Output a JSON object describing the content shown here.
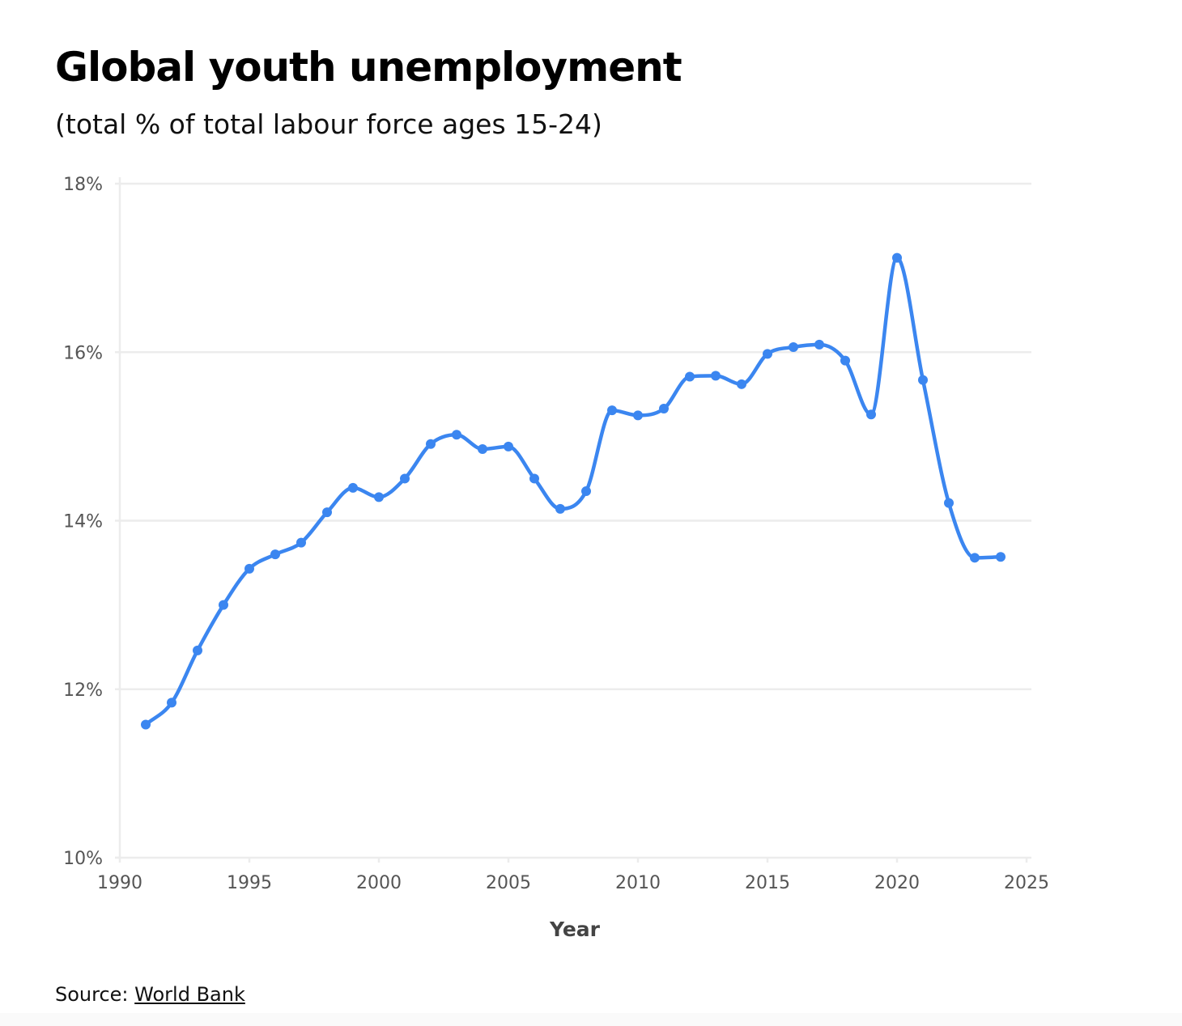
{
  "title": "Global youth unemployment",
  "subtitle": "(total % of total labour force ages 15-24)",
  "source": {
    "prefix": "Source: ",
    "link_text": "World Bank"
  },
  "colors": {
    "line": "#3b86f0",
    "grid": "#ececec",
    "tick_text": "#555555"
  },
  "chart_data": {
    "type": "line",
    "title": "Global youth unemployment",
    "subtitle": "(total % of total labour force ages 15-24)",
    "xlabel": "Year",
    "ylabel": "",
    "x_ticks": [
      1990,
      1995,
      2000,
      2005,
      2010,
      2015,
      2020,
      2025
    ],
    "x_tick_labels": [
      "1990",
      "1995",
      "2000",
      "2005",
      "2010",
      "2015",
      "2020",
      "2025"
    ],
    "y_ticks": [
      10,
      12,
      14,
      16,
      18
    ],
    "y_tick_labels": [
      "10%",
      "12%",
      "14%",
      "16%",
      "18%"
    ],
    "xlim": [
      1990,
      2025
    ],
    "ylim": [
      10,
      18
    ],
    "grid": "horizontal",
    "smooth": true,
    "markers": true,
    "series": [
      {
        "x": [
          1991,
          1992,
          1993,
          1994,
          1995,
          1996,
          1997,
          1998,
          1999,
          2000,
          2001,
          2002,
          2003,
          2004,
          2005,
          2006,
          2007,
          2008,
          2009,
          2010,
          2011,
          2012,
          2013,
          2014,
          2015,
          2016,
          2017,
          2018,
          2019,
          2020,
          2021,
          2022,
          2023,
          2024
        ],
        "values": [
          11.58,
          11.84,
          12.46,
          13.0,
          13.43,
          13.6,
          13.74,
          14.1,
          14.39,
          14.28,
          14.5,
          14.91,
          15.02,
          14.85,
          14.88,
          14.5,
          14.14,
          14.35,
          15.31,
          15.25,
          15.33,
          15.71,
          15.72,
          15.62,
          15.98,
          16.06,
          16.09,
          15.9,
          15.26,
          17.12,
          15.67,
          14.21,
          13.56,
          13.57
        ]
      }
    ]
  }
}
